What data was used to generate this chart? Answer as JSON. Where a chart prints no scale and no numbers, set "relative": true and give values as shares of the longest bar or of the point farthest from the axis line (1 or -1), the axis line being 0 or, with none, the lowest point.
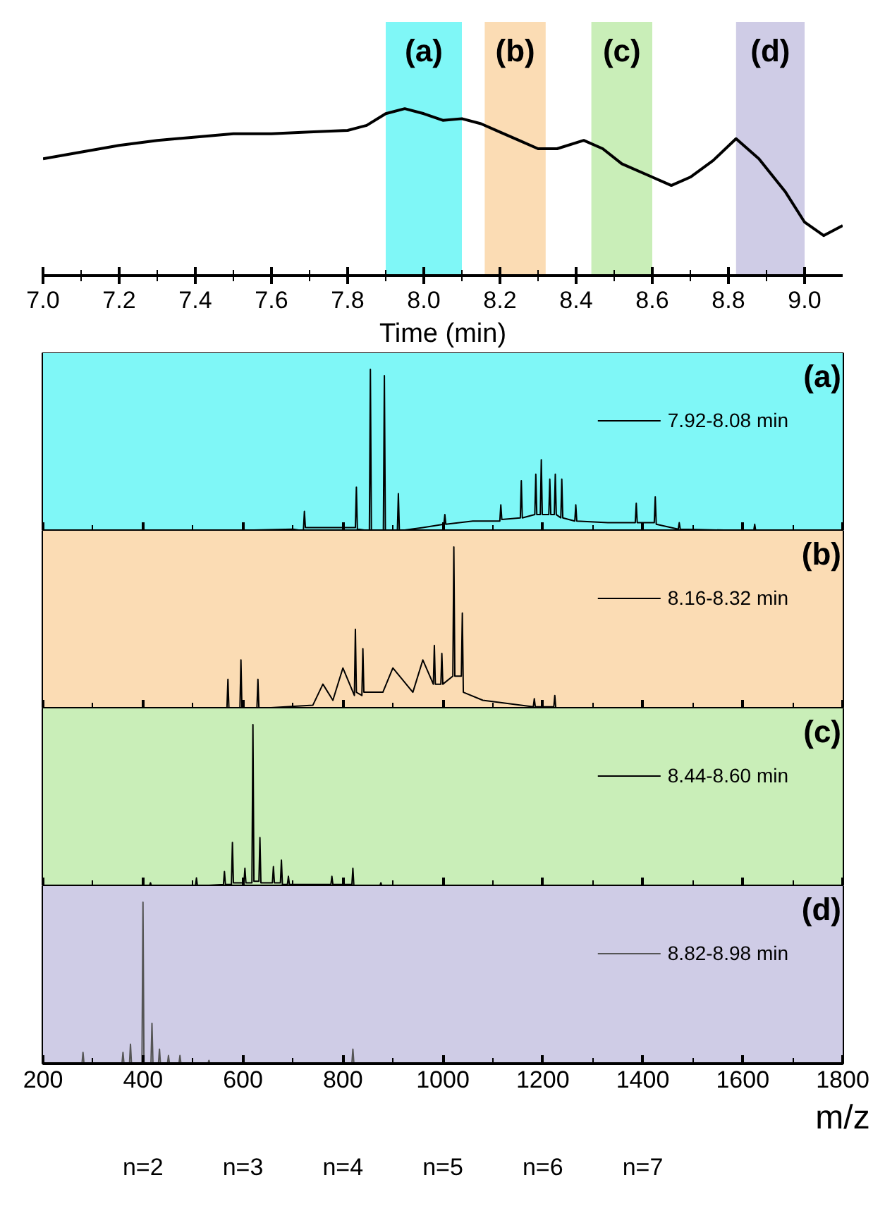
{
  "chart_data": [
    {
      "type": "line",
      "xlabel": "Time (min)",
      "relative": true,
      "grid": false,
      "xlim": [
        7.0,
        9.1
      ],
      "xticks": [
        {
          "value": 7.0,
          "label": "7.0"
        },
        {
          "value": 7.1,
          "label": null
        },
        {
          "value": 7.2,
          "label": "7.2"
        },
        {
          "value": 7.3,
          "label": null
        },
        {
          "value": 7.4,
          "label": "7.4"
        },
        {
          "value": 7.5,
          "label": null
        },
        {
          "value": 7.6,
          "label": "7.6"
        },
        {
          "value": 7.7,
          "label": null
        },
        {
          "value": 7.8,
          "label": "7.8"
        },
        {
          "value": 7.9,
          "label": null
        },
        {
          "value": 8.0,
          "label": "8.0"
        },
        {
          "value": 8.1,
          "label": null
        },
        {
          "value": 8.2,
          "label": "8.2"
        },
        {
          "value": 8.3,
          "label": null
        },
        {
          "value": 8.4,
          "label": "8.4"
        },
        {
          "value": 8.5,
          "label": null
        },
        {
          "value": 8.6,
          "label": "8.6"
        },
        {
          "value": 8.7,
          "label": null
        },
        {
          "value": 8.8,
          "label": "8.8"
        },
        {
          "value": 8.9,
          "label": null
        },
        {
          "value": 9.0,
          "label": "9.0"
        }
      ],
      "bands": [
        {
          "axis": "x",
          "from": 7.9,
          "to": 8.1,
          "label": "(a)",
          "color": "#7ff7f7"
        },
        {
          "axis": "x",
          "from": 8.16,
          "to": 8.32,
          "label": "(b)",
          "color": "#fbdcb4"
        },
        {
          "axis": "x",
          "from": 8.44,
          "to": 8.6,
          "label": "(c)",
          "color": "#c9eeb8"
        },
        {
          "axis": "x",
          "from": 8.82,
          "to": 9.0,
          "label": "(d)",
          "color": "#cfcce6"
        }
      ],
      "series": [
        {
          "color": "#000000",
          "x": [
            7.0,
            7.1,
            7.2,
            7.3,
            7.4,
            7.5,
            7.6,
            7.7,
            7.8,
            7.85,
            7.9,
            7.95,
            8.0,
            8.05,
            8.1,
            8.15,
            8.2,
            8.25,
            8.3,
            8.35,
            8.42,
            8.47,
            8.52,
            8.6,
            8.65,
            8.7,
            8.76,
            8.82,
            8.88,
            8.95,
            9.0,
            9.05,
            9.1
          ],
          "values": [
            0.7,
            0.74,
            0.78,
            0.81,
            0.83,
            0.85,
            0.85,
            0.86,
            0.87,
            0.9,
            0.97,
            1.0,
            0.97,
            0.93,
            0.94,
            0.91,
            0.86,
            0.81,
            0.76,
            0.76,
            0.81,
            0.76,
            0.67,
            0.59,
            0.54,
            0.59,
            0.69,
            0.82,
            0.7,
            0.5,
            0.32,
            0.24,
            0.3
          ]
        }
      ]
    },
    {
      "type": "line",
      "relative": true,
      "grid": false,
      "tick_labels": false,
      "legend": "top right",
      "annotations": [
        "(a)"
      ],
      "xlim": [
        200,
        1800
      ],
      "xticks": [
        200,
        {
          "value": 300,
          "label": null
        },
        400,
        {
          "value": 500,
          "label": null
        },
        600,
        {
          "value": 700,
          "label": null
        },
        800,
        {
          "value": 900,
          "label": null
        },
        1000,
        {
          "value": 1100,
          "label": null
        },
        1200,
        {
          "value": 1300,
          "label": null
        },
        1400,
        {
          "value": 1500,
          "label": null
        },
        1600,
        {
          "value": 1700,
          "label": null
        },
        1800
      ],
      "bands": [
        {
          "axis": "x",
          "from": 200,
          "to": 1800,
          "color": "#7ff7f7"
        }
      ],
      "series": [
        {
          "name": "7.92-8.08 min",
          "color": "#000000",
          "x": [
            560,
            700,
            721,
            723,
            725,
            825,
            827,
            829,
            853,
            855,
            857,
            881,
            883,
            885,
            909,
            911,
            913,
            960,
            1002,
            1004,
            1006,
            1060,
            1114,
            1116,
            1118,
            1155,
            1157,
            1159,
            1184,
            1186,
            1188,
            1195,
            1197,
            1199,
            1212,
            1214,
            1216,
            1223,
            1225,
            1227,
            1236,
            1238,
            1240,
            1264,
            1266,
            1268,
            1330,
            1385,
            1387,
            1389,
            1423,
            1425,
            1427,
            1471,
            1473,
            1475,
            1622,
            1624,
            1626,
            1800
          ],
          "values": [
            0,
            0.01,
            0,
            0.12,
            0.02,
            0.02,
            0.27,
            0.01,
            0,
            1.0,
            0,
            0,
            0.96,
            0,
            0,
            0.23,
            0,
            0.02,
            0.04,
            0.1,
            0.04,
            0.06,
            0.06,
            0.16,
            0.07,
            0.08,
            0.31,
            0.08,
            0.1,
            0.35,
            0.1,
            0.1,
            0.44,
            0.1,
            0.1,
            0.32,
            0.1,
            0.1,
            0.35,
            0.1,
            0.08,
            0.32,
            0.08,
            0.06,
            0.16,
            0.06,
            0.05,
            0.05,
            0.17,
            0.05,
            0.05,
            0.21,
            0.04,
            0.01,
            0.05,
            0.01,
            0,
            0.04,
            0,
            0
          ]
        }
      ]
    },
    {
      "type": "line",
      "relative": true,
      "grid": false,
      "tick_labels": false,
      "legend": "top right",
      "annotations": [
        "(b)"
      ],
      "xlim": [
        200,
        1800
      ],
      "xticks": [
        200,
        {
          "value": 300,
          "label": null
        },
        400,
        {
          "value": 500,
          "label": null
        },
        600,
        {
          "value": 700,
          "label": null
        },
        800,
        {
          "value": 900,
          "label": null
        },
        1000,
        {
          "value": 1100,
          "label": null
        },
        1200,
        {
          "value": 1300,
          "label": null
        },
        1400,
        {
          "value": 1500,
          "label": null
        },
        1600,
        {
          "value": 1700,
          "label": null
        },
        1800
      ],
      "bands": [
        {
          "axis": "x",
          "from": 200,
          "to": 1800,
          "color": "#fbdcb4"
        }
      ],
      "series": [
        {
          "name": "8.16-8.32 min",
          "color": "#000000",
          "x": [
            560,
            568,
            570,
            572,
            594,
            596,
            598,
            628,
            630,
            632,
            740,
            760,
            780,
            800,
            823,
            825,
            827,
            838,
            840,
            842,
            880,
            900,
            940,
            960,
            981,
            983,
            985,
            996,
            998,
            1000,
            1020,
            1022,
            1024,
            1037,
            1039,
            1041,
            1080,
            1181,
            1183,
            1185,
            1222,
            1224,
            1226,
            1260,
            1800
          ],
          "values": [
            0,
            0,
            0.18,
            0,
            0,
            0.3,
            0,
            0,
            0.18,
            0,
            0.02,
            0.15,
            0.05,
            0.25,
            0.08,
            0.49,
            0.1,
            0.08,
            0.37,
            0.1,
            0.1,
            0.25,
            0.1,
            0.3,
            0.15,
            0.39,
            0.15,
            0.15,
            0.34,
            0.15,
            0.2,
            1.0,
            0.2,
            0.2,
            0.59,
            0.1,
            0.05,
            0.01,
            0.06,
            0.01,
            0.01,
            0.08,
            0,
            0,
            0
          ]
        }
      ]
    },
    {
      "type": "line",
      "relative": true,
      "grid": false,
      "tick_labels": false,
      "legend": "top right",
      "annotations": [
        "(c)"
      ],
      "xlim": [
        200,
        1800
      ],
      "xticks": [
        200,
        {
          "value": 300,
          "label": null
        },
        400,
        {
          "value": 500,
          "label": null
        },
        600,
        {
          "value": 700,
          "label": null
        },
        800,
        {
          "value": 900,
          "label": null
        },
        1000,
        {
          "value": 1100,
          "label": null
        },
        1200,
        {
          "value": 1300,
          "label": null
        },
        1400,
        {
          "value": 1500,
          "label": null
        },
        1600,
        {
          "value": 1700,
          "label": null
        },
        1800
      ],
      "bands": [
        {
          "axis": "x",
          "from": 200,
          "to": 1800,
          "color": "#c9eeb8"
        }
      ],
      "series": [
        {
          "name": "8.44-8.60 min",
          "color": "#000000",
          "x": [
            200,
            413,
            415,
            417,
            505,
            507,
            509,
            561,
            563,
            565,
            577,
            579,
            581,
            602,
            604,
            606,
            618,
            620,
            622,
            632,
            634,
            636,
            659,
            661,
            663,
            675,
            677,
            679,
            689,
            691,
            693,
            776,
            778,
            780,
            818,
            820,
            822,
            874,
            876,
            878,
            1001
          ],
          "values": [
            0,
            0,
            0.02,
            0,
            0,
            0.05,
            0,
            0.01,
            0.09,
            0.01,
            0.01,
            0.27,
            0.02,
            0.02,
            0.11,
            0.02,
            0.02,
            1.0,
            0.03,
            0.03,
            0.3,
            0.02,
            0.02,
            0.12,
            0.02,
            0.02,
            0.16,
            0.01,
            0.01,
            0.06,
            0.01,
            0.01,
            0.06,
            0.01,
            0.01,
            0.11,
            0,
            0,
            0.02,
            0,
            0
          ]
        }
      ]
    },
    {
      "type": "line",
      "relative": true,
      "grid": false,
      "legend": "top right",
      "xlabel": "m/z",
      "xlim": [
        200,
        1800
      ],
      "xticks": [
        200,
        {
          "value": 300,
          "label": null
        },
        400,
        {
          "value": 500,
          "label": null
        },
        600,
        {
          "value": 700,
          "label": null
        },
        800,
        {
          "value": 900,
          "label": null
        },
        1000,
        {
          "value": 1100,
          "label": null
        },
        1200,
        {
          "value": 1300,
          "label": null
        },
        1400,
        {
          "value": 1500,
          "label": null
        },
        1600,
        {
          "value": 1700,
          "label": null
        },
        1800
      ],
      "tick_labels": "x",
      "annotations": [
        "(d)",
        "n=2",
        "n=3",
        "n=4",
        "n=5",
        "n=6",
        "n=7"
      ],
      "bands": [
        {
          "axis": "x",
          "from": 200,
          "to": 1800,
          "color": "#cfcce6"
        }
      ],
      "series": [
        {
          "name": "8.82-8.98 min",
          "color": "#555555",
          "x": [
            200,
            278,
            280,
            282,
            358,
            360,
            362,
            373,
            375,
            377,
            398,
            400,
            402,
            416,
            418,
            420,
            431,
            433,
            435,
            449,
            451,
            453,
            472,
            474,
            476,
            530,
            532,
            534,
            818,
            820,
            822,
            1001
          ],
          "values": [
            0,
            0,
            0.07,
            0,
            0,
            0.07,
            0,
            0,
            0.12,
            0,
            0,
            1.0,
            0,
            0,
            0.25,
            0,
            0,
            0.09,
            0,
            0,
            0.05,
            0,
            0,
            0.05,
            0,
            0,
            0.02,
            0,
            0,
            0.09,
            0,
            0
          ]
        }
      ]
    }
  ]
}
